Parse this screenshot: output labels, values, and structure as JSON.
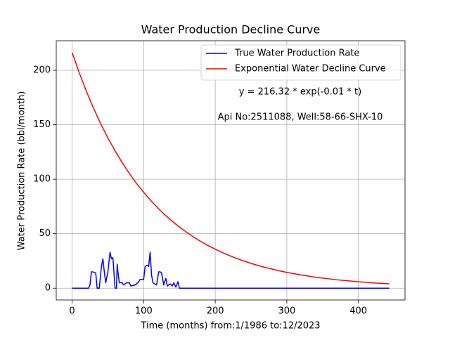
{
  "chart_data": {
    "type": "line",
    "title": "Water Production Decline Curve",
    "x_label": "Time (months) from:1/1986 to:12/2023",
    "y_label": "Water Production Rate (bbl/month)",
    "annotations": [
      "y = 216.32 * exp(-0.01 * t)",
      "Api No:2511088, Well:58-66-SHX-10"
    ],
    "xlim": [
      -22.15,
      465.15
    ],
    "ylim": [
      -10.8,
      227.1
    ],
    "xticks": [
      0,
      100,
      200,
      300,
      400
    ],
    "yticks": [
      0,
      50,
      100,
      150,
      200
    ],
    "grid": true,
    "legend": "upper right",
    "series": [
      {
        "name": "True Water Production Rate",
        "color": "#0000ff",
        "x": [
          0,
          23,
          25,
          27,
          29,
          33,
          35,
          38,
          41,
          43,
          45,
          47,
          50,
          53,
          55,
          57,
          60,
          62,
          63,
          64,
          66,
          70,
          72,
          76,
          80,
          82,
          88,
          92,
          95,
          100,
          102,
          105,
          107,
          109,
          111,
          113,
          118,
          121,
          123,
          125,
          128,
          131,
          133,
          137,
          140,
          142,
          145,
          148,
          150,
          443
        ],
        "values": [
          0,
          0,
          3,
          15,
          15,
          14,
          0,
          0,
          20,
          27,
          15,
          5,
          15,
          33,
          27,
          28,
          0,
          0,
          22,
          15,
          5,
          5,
          3,
          5,
          5,
          2,
          3,
          5,
          8,
          8,
          20,
          21,
          20,
          33,
          12,
          5,
          3,
          15,
          15,
          14,
          3,
          9,
          2,
          4,
          2,
          5,
          1,
          6,
          0,
          0
        ]
      },
      {
        "name": "Exponential Water Decline Curve",
        "color": "#ff0000",
        "x": [
          0,
          10,
          20,
          30,
          40,
          50,
          60,
          70,
          80,
          90,
          100,
          110,
          120,
          130,
          140,
          150,
          160,
          170,
          180,
          190,
          200,
          210,
          220,
          230,
          240,
          250,
          260,
          270,
          280,
          290,
          300,
          310,
          320,
          330,
          340,
          350,
          360,
          370,
          380,
          390,
          400,
          410,
          420,
          430,
          443
        ],
        "values": [
          216.32,
          197.7,
          180.7,
          165.1,
          150.9,
          137.9,
          126.1,
          115.2,
          105.3,
          96.2,
          88.0,
          80.4,
          73.5,
          67.1,
          61.4,
          56.1,
          51.3,
          46.8,
          42.8,
          39.1,
          35.8,
          32.7,
          29.9,
          27.3,
          24.9,
          22.8,
          20.8,
          19.0,
          17.4,
          15.9,
          14.5,
          13.3,
          12.1,
          11.1,
          10.1,
          9.3,
          8.5,
          7.7,
          7.1,
          6.5,
          5.9,
          5.4,
          4.9,
          4.5,
          4.0
        ]
      }
    ]
  }
}
